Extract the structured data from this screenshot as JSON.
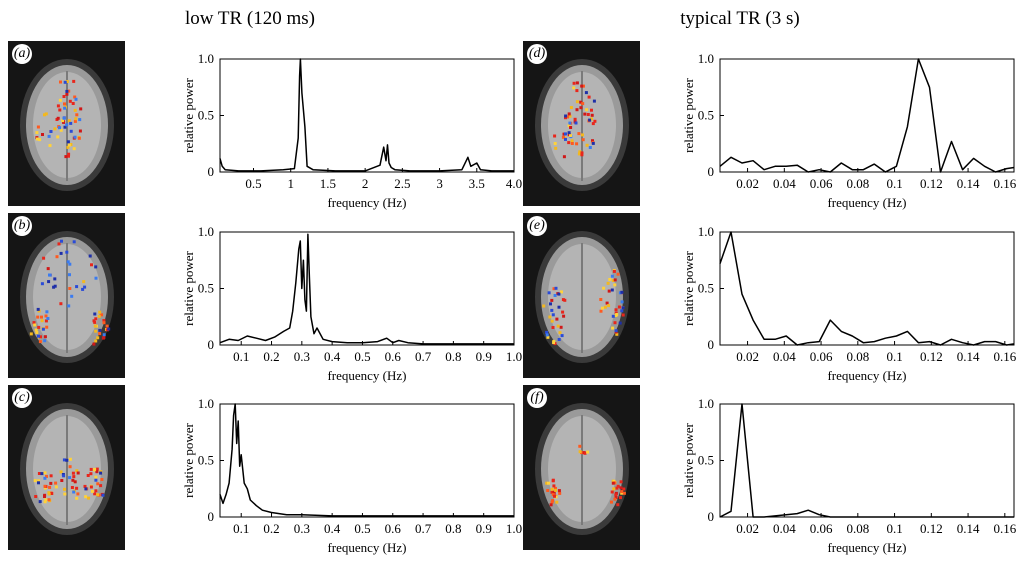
{
  "titles": {
    "left": "low TR (120 ms)",
    "right": "typical TR (3 s)"
  },
  "panels": [
    {
      "label": "(a)"
    },
    {
      "label": "(b)"
    },
    {
      "label": "(c)"
    },
    {
      "label": "(d)"
    },
    {
      "label": "(e)"
    },
    {
      "label": "(f)"
    }
  ],
  "chart_data": [
    {
      "type": "line",
      "panel": "a",
      "xlabel": "frequency (Hz)",
      "ylabel": "relative power",
      "xlim": [
        0.05,
        4.0
      ],
      "ylim": [
        0,
        1.0
      ],
      "xticks": [
        0.5,
        1,
        1.5,
        2,
        2.5,
        3,
        3.5,
        4.0
      ],
      "xtick_labels": [
        "0.5",
        "1",
        "1.5",
        "2",
        "2.5",
        "3",
        "3.5",
        "4.0"
      ],
      "yticks": [
        0,
        0.5,
        1.0
      ],
      "ytick_labels": [
        "0",
        "0.5",
        "1.0"
      ],
      "x": [
        0.05,
        0.08,
        0.12,
        0.3,
        0.6,
        0.9,
        1.05,
        1.1,
        1.12,
        1.13,
        1.15,
        1.17,
        1.19,
        1.22,
        1.3,
        1.6,
        2.0,
        2.2,
        2.25,
        2.28,
        2.3,
        2.32,
        2.35,
        2.4,
        2.6,
        3.0,
        3.3,
        3.38,
        3.42,
        3.5,
        3.55,
        3.7,
        4.0
      ],
      "y": [
        0.12,
        0.05,
        0.02,
        0.01,
        0.01,
        0.02,
        0.03,
        0.3,
        0.85,
        1.0,
        0.7,
        0.55,
        0.4,
        0.05,
        0.02,
        0.01,
        0.01,
        0.06,
        0.22,
        0.1,
        0.24,
        0.08,
        0.04,
        0.02,
        0.01,
        0.01,
        0.02,
        0.13,
        0.05,
        0.08,
        0.02,
        0.01,
        0.01
      ]
    },
    {
      "type": "line",
      "panel": "b",
      "xlabel": "frequency (Hz)",
      "ylabel": "relative power",
      "xlim": [
        0.03,
        1.0
      ],
      "ylim": [
        0,
        1.0
      ],
      "xticks": [
        0.1,
        0.2,
        0.3,
        0.4,
        0.5,
        0.6,
        0.7,
        0.8,
        0.9,
        1.0
      ],
      "xtick_labels": [
        "0.1",
        "0.2",
        "0.3",
        "0.4",
        "0.5",
        "0.6",
        "0.7",
        "0.8",
        "0.9",
        "1.0"
      ],
      "yticks": [
        0,
        0.5,
        1.0
      ],
      "ytick_labels": [
        "0",
        "0.5",
        "1.0"
      ],
      "x": [
        0.03,
        0.06,
        0.09,
        0.12,
        0.15,
        0.18,
        0.21,
        0.24,
        0.26,
        0.27,
        0.28,
        0.29,
        0.295,
        0.3,
        0.305,
        0.31,
        0.315,
        0.32,
        0.325,
        0.33,
        0.34,
        0.35,
        0.37,
        0.4,
        0.45,
        0.5,
        0.55,
        0.58,
        0.6,
        0.62,
        0.65,
        0.7,
        0.8,
        0.9,
        1.0
      ],
      "y": [
        0.02,
        0.05,
        0.04,
        0.08,
        0.06,
        0.04,
        0.07,
        0.12,
        0.15,
        0.3,
        0.55,
        0.85,
        0.92,
        0.5,
        0.75,
        0.4,
        0.3,
        0.98,
        0.6,
        0.25,
        0.1,
        0.15,
        0.05,
        0.03,
        0.02,
        0.02,
        0.03,
        0.06,
        0.02,
        0.04,
        0.02,
        0.01,
        0.01,
        0.01,
        0.01
      ]
    },
    {
      "type": "line",
      "panel": "c",
      "xlabel": "frequency (Hz)",
      "ylabel": "relative power",
      "xlim": [
        0.03,
        1.0
      ],
      "ylim": [
        0,
        1.0
      ],
      "xticks": [
        0.1,
        0.2,
        0.3,
        0.4,
        0.5,
        0.6,
        0.7,
        0.8,
        0.9,
        1.0
      ],
      "xtick_labels": [
        "0.1",
        "0.2",
        "0.3",
        "0.4",
        "0.5",
        "0.6",
        "0.7",
        "0.8",
        "0.9",
        "1.0"
      ],
      "yticks": [
        0,
        0.5,
        1.0
      ],
      "ytick_labels": [
        "0",
        "0.5",
        "1.0"
      ],
      "x": [
        0.03,
        0.04,
        0.05,
        0.06,
        0.07,
        0.075,
        0.08,
        0.085,
        0.09,
        0.095,
        0.1,
        0.11,
        0.12,
        0.13,
        0.15,
        0.17,
        0.2,
        0.25,
        0.3,
        0.4,
        0.5,
        0.7,
        1.0
      ],
      "y": [
        0.2,
        0.12,
        0.2,
        0.3,
        0.6,
        0.9,
        1.0,
        0.65,
        0.85,
        0.45,
        0.55,
        0.3,
        0.25,
        0.15,
        0.1,
        0.06,
        0.04,
        0.02,
        0.02,
        0.01,
        0.01,
        0.01,
        0.01
      ]
    },
    {
      "type": "line",
      "panel": "d",
      "xlabel": "frequency (Hz)",
      "ylabel": "relative power",
      "xlim": [
        0.005,
        0.165
      ],
      "ylim": [
        0,
        1.0
      ],
      "xticks": [
        0.02,
        0.04,
        0.06,
        0.08,
        0.1,
        0.12,
        0.14,
        0.16
      ],
      "xtick_labels": [
        "0.02",
        "0.04",
        "0.06",
        "0.08",
        "0.1",
        "0.12",
        "0.14",
        "0.16"
      ],
      "yticks": [
        0,
        0.5,
        1.0
      ],
      "ytick_labels": [
        "0",
        "0.5",
        "1.0"
      ],
      "x": [
        0.005,
        0.011,
        0.017,
        0.023,
        0.029,
        0.035,
        0.041,
        0.047,
        0.053,
        0.059,
        0.065,
        0.071,
        0.077,
        0.083,
        0.089,
        0.095,
        0.101,
        0.107,
        0.113,
        0.119,
        0.125,
        0.131,
        0.137,
        0.143,
        0.149,
        0.155,
        0.161,
        0.165
      ],
      "y": [
        0.05,
        0.13,
        0.08,
        0.1,
        0.02,
        0.05,
        0.05,
        0.06,
        0.0,
        0.02,
        0.0,
        0.08,
        0.02,
        0.02,
        0.07,
        0.0,
        0.05,
        0.4,
        1.0,
        0.75,
        0.0,
        0.27,
        0.02,
        0.12,
        0.05,
        0.0,
        0.03,
        0.04
      ]
    },
    {
      "type": "line",
      "panel": "e",
      "xlabel": "frequency (Hz)",
      "ylabel": "relative power",
      "xlim": [
        0.005,
        0.165
      ],
      "ylim": [
        0,
        1.0
      ],
      "xticks": [
        0.02,
        0.04,
        0.06,
        0.08,
        0.1,
        0.12,
        0.14,
        0.16
      ],
      "xtick_labels": [
        "0.02",
        "0.04",
        "0.06",
        "0.08",
        "0.1",
        "0.12",
        "0.14",
        "0.16"
      ],
      "yticks": [
        0,
        0.5,
        1.0
      ],
      "ytick_labels": [
        "0",
        "0.5",
        "1.0"
      ],
      "x": [
        0.005,
        0.011,
        0.017,
        0.023,
        0.029,
        0.035,
        0.041,
        0.047,
        0.053,
        0.059,
        0.065,
        0.071,
        0.077,
        0.083,
        0.089,
        0.095,
        0.101,
        0.107,
        0.113,
        0.119,
        0.125,
        0.131,
        0.137,
        0.143,
        0.149,
        0.155,
        0.161,
        0.165
      ],
      "y": [
        0.72,
        1.0,
        0.45,
        0.22,
        0.05,
        0.05,
        0.08,
        0.0,
        0.02,
        0.03,
        0.22,
        0.12,
        0.08,
        0.02,
        0.03,
        0.06,
        0.08,
        0.12,
        0.02,
        0.03,
        0.0,
        0.05,
        0.02,
        0.0,
        0.03,
        0.03,
        0.0,
        0.01
      ]
    },
    {
      "type": "line",
      "panel": "f",
      "xlabel": "frequency (Hz)",
      "ylabel": "relative power",
      "xlim": [
        0.005,
        0.165
      ],
      "ylim": [
        0,
        1.0
      ],
      "xticks": [
        0.02,
        0.04,
        0.06,
        0.08,
        0.1,
        0.12,
        0.14,
        0.16
      ],
      "xtick_labels": [
        "0.02",
        "0.04",
        "0.06",
        "0.08",
        "0.1",
        "0.12",
        "0.14",
        "0.16"
      ],
      "yticks": [
        0,
        0.5,
        1.0
      ],
      "ytick_labels": [
        "0",
        "0.5",
        "1.0"
      ],
      "x": [
        0.005,
        0.011,
        0.017,
        0.023,
        0.029,
        0.035,
        0.041,
        0.047,
        0.053,
        0.059,
        0.065,
        0.08,
        0.1,
        0.12,
        0.14,
        0.165
      ],
      "y": [
        0.0,
        0.05,
        1.0,
        0.0,
        0.0,
        0.01,
        0.02,
        0.03,
        0.06,
        0.02,
        0.0,
        0.0,
        0.0,
        0.0,
        0.0,
        0.0
      ]
    }
  ]
}
